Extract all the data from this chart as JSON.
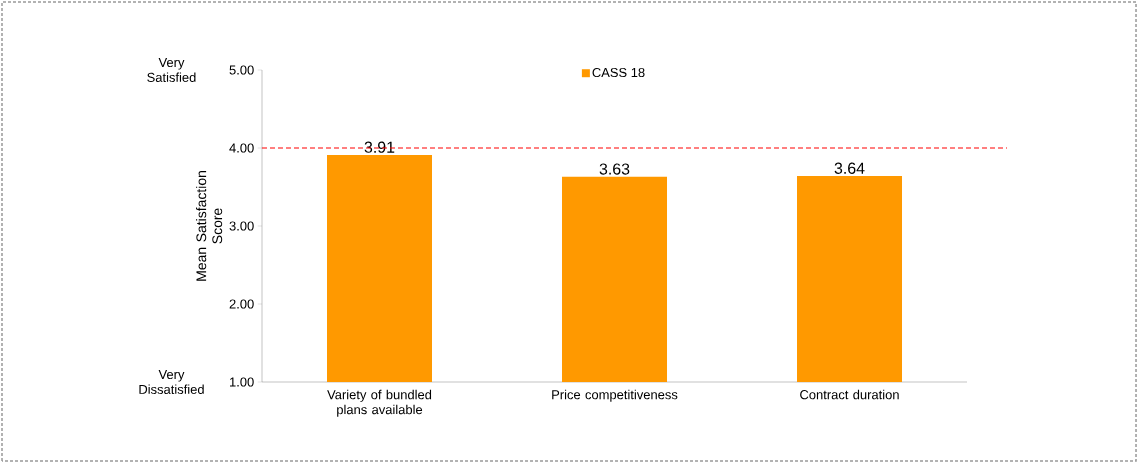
{
  "chart_data": {
    "type": "bar",
    "ylabel": "Mean Satisfaction Score",
    "categories": [
      "Variety of bundled plans available",
      "Price competitiveness",
      "Contract duration"
    ],
    "series": [
      {
        "name": "CASS 18",
        "color": "#ff9900",
        "values": [
          3.91,
          3.63,
          3.64
        ]
      }
    ],
    "ylim": [
      1,
      5
    ],
    "yticks": [
      {
        "value": 1,
        "label": "1.00"
      },
      {
        "value": 2,
        "label": "2.00"
      },
      {
        "value": 3,
        "label": "3.00"
      },
      {
        "value": 4,
        "label": "4.00"
      },
      {
        "value": 5,
        "label": "5.00"
      }
    ],
    "ref_lines": [
      {
        "axis": "y",
        "value": 4,
        "color": "#ff0000",
        "line_style": "dashed"
      }
    ],
    "annotations": [
      "Very Satisfied",
      "Very Dissatisfied"
    ],
    "data_labels": true,
    "legend": "top",
    "grid": false
  }
}
